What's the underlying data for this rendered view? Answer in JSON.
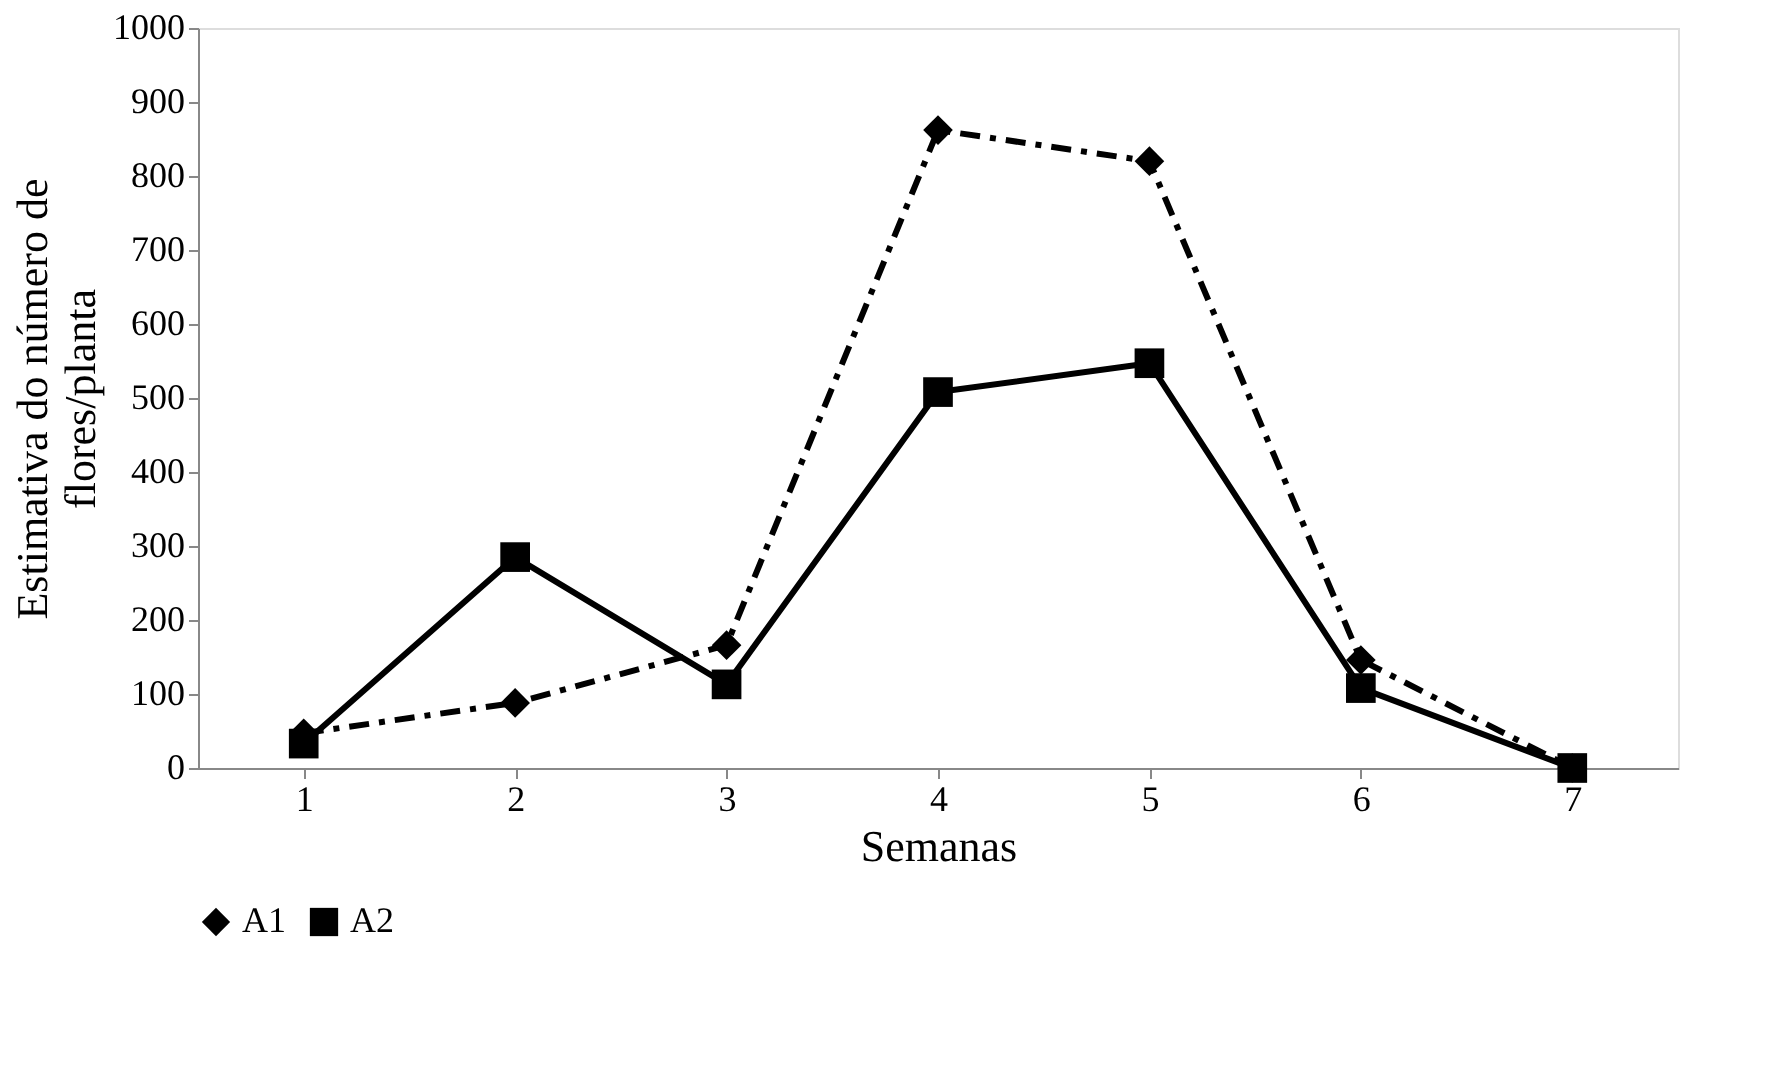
{
  "chart_data": {
    "type": "line",
    "xlabel": "Semanas",
    "ylabel": "Estimativa do número de\nflores/planta",
    "categories": [
      "1",
      "2",
      "3",
      "4",
      "5",
      "6",
      "7"
    ],
    "series": [
      {
        "name": "A1",
        "color": "#000000",
        "values": [
          47,
          88,
          166,
          862,
          820,
          146,
          0
        ],
        "marker": "diamond",
        "line_style": "dashed"
      },
      {
        "name": "A2",
        "color": "#000000",
        "values": [
          33,
          285,
          113,
          508,
          547,
          108,
          0
        ],
        "marker": "square",
        "line_style": "solid"
      }
    ],
    "ylim": [
      0,
      1000
    ],
    "yticks": [
      0,
      100,
      200,
      300,
      400,
      500,
      600,
      700,
      800,
      900,
      1000
    ],
    "grid": false,
    "legend": "bottom"
  }
}
